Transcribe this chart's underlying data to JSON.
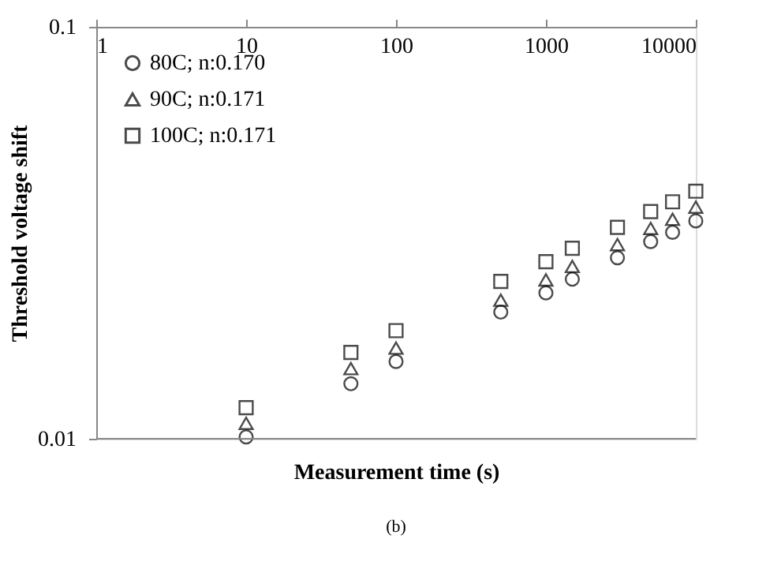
{
  "chart_data": {
    "type": "scatter",
    "xlabel": "Measurement time (s)",
    "ylabel": "Threshold voltage shift",
    "x": [
      10,
      50,
      100,
      500,
      1000,
      1500,
      3000,
      5000,
      7000,
      10000
    ],
    "series": [
      {
        "name": "80C; n:0.170",
        "color": "#000000",
        "marker": "circle",
        "values": [
          0.0101,
          0.0136,
          0.0154,
          0.0203,
          0.0226,
          0.0244,
          0.0275,
          0.0301,
          0.0317,
          0.0338
        ]
      },
      {
        "name": "90C; n:0.171",
        "color": "#000000",
        "marker": "triangle",
        "values": [
          0.0109,
          0.0148,
          0.0166,
          0.0217,
          0.0243,
          0.0262,
          0.0296,
          0.0324,
          0.0341,
          0.0365
        ]
      },
      {
        "name": "100C; n:0.171",
        "color": "#000000",
        "marker": "square",
        "values": [
          0.0119,
          0.0162,
          0.0183,
          0.0241,
          0.0269,
          0.029,
          0.0326,
          0.0356,
          0.0376,
          0.0399
        ]
      }
    ],
    "log": "xy",
    "xlim": [
      1,
      10000
    ],
    "xticks": [
      1,
      10,
      100,
      1000,
      10000
    ],
    "ylim": [
      0.01,
      0.1
    ],
    "yticks": [
      0.01,
      0.1
    ],
    "grid": false,
    "legend": "top left",
    "annotations": [
      "(b)"
    ]
  }
}
